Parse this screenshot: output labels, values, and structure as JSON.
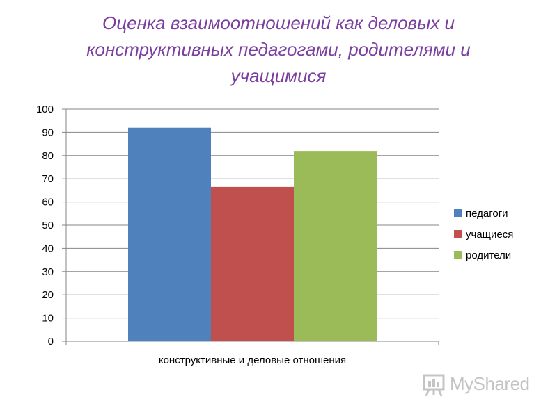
{
  "chart_data": {
    "type": "bar",
    "title_lines": [
      "Оценка взаимоотношений как деловых и",
      "конструктивных педагогами, родителями и",
      "учащимися"
    ],
    "categories": [
      "конструктивные и деловые отношения"
    ],
    "series": [
      {
        "name": "педагоги",
        "values": [
          92
        ],
        "color": "#4f81bd"
      },
      {
        "name": "учащиеся",
        "values": [
          66.5
        ],
        "color": "#c0504d"
      },
      {
        "name": "родители",
        "values": [
          82
        ],
        "color": "#9bbb59"
      }
    ],
    "ylim": [
      0,
      100
    ],
    "yticks": [
      0,
      10,
      20,
      30,
      40,
      50,
      60,
      70,
      80,
      90,
      100
    ],
    "grid": true,
    "legend_position": "right"
  },
  "watermark": {
    "text": "MyShared"
  }
}
